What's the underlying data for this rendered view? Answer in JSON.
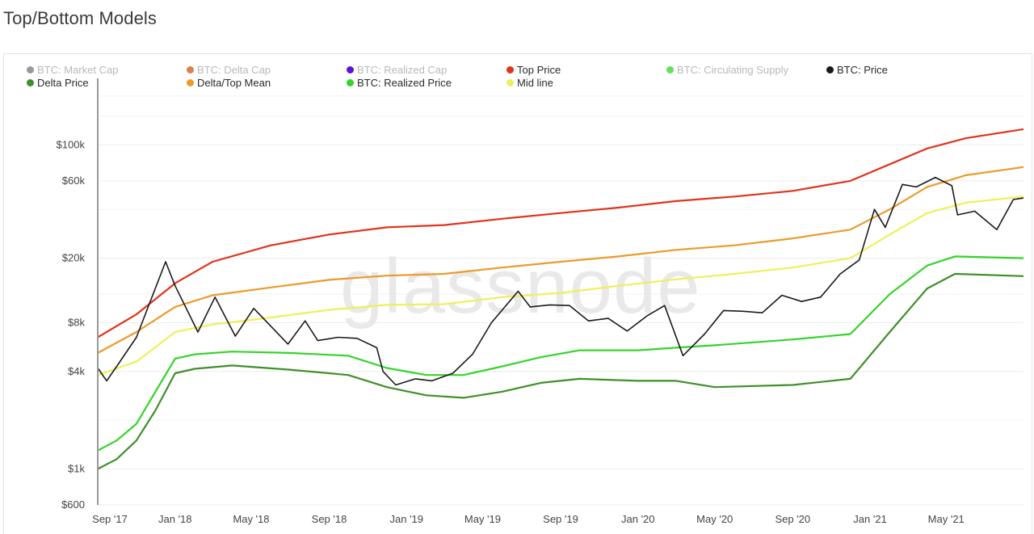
{
  "page": {
    "title": "Top/Bottom Models"
  },
  "watermark": "glassnode",
  "legend": [
    {
      "label": "BTC: Market Cap",
      "color": "#999999",
      "muted": true
    },
    {
      "label": "BTC: Delta Cap",
      "color": "#d9804f",
      "muted": true
    },
    {
      "label": "BTC: Realized Cap",
      "color": "#5b14d6",
      "muted": true
    },
    {
      "label": "Top Price",
      "color": "#e0331c",
      "muted": false
    },
    {
      "label": "BTC: Circulating Supply",
      "color": "#66e05a",
      "muted": true
    },
    {
      "label": "BTC: Price",
      "color": "#1a1a1a",
      "muted": false
    },
    {
      "label": "Delta Price",
      "color": "#3f8f2b",
      "muted": false
    },
    {
      "label": "Delta/Top Mean",
      "color": "#ec9a2a",
      "muted": false
    },
    {
      "label": "BTC: Realized Price",
      "color": "#34d42a",
      "muted": false
    },
    {
      "label": "Mid line",
      "color": "#eef05a",
      "muted": false
    }
  ],
  "chart_data": {
    "type": "line",
    "title": "Top/Bottom Models",
    "yscale": "log",
    "ylim": [
      600,
      200000
    ],
    "grid": true,
    "legend_position": "top",
    "y_ticks": [
      {
        "value": 600,
        "label": "$600"
      },
      {
        "value": 1000,
        "label": "$1k"
      },
      {
        "value": 4000,
        "label": "$4k"
      },
      {
        "value": 8000,
        "label": "$8k"
      },
      {
        "value": 20000,
        "label": "$20k"
      },
      {
        "value": 60000,
        "label": "$60k"
      },
      {
        "value": 100000,
        "label": "$100k"
      }
    ],
    "x_range": [
      "2017-09-01",
      "2021-08-31"
    ],
    "x_ticks": [
      {
        "date": "2017-09-01",
        "label": "Sep '17"
      },
      {
        "date": "2018-01-01",
        "label": "Jan '18"
      },
      {
        "date": "2018-05-01",
        "label": "May '18"
      },
      {
        "date": "2018-09-01",
        "label": "Sep '18"
      },
      {
        "date": "2019-01-01",
        "label": "Jan '19"
      },
      {
        "date": "2019-05-01",
        "label": "May '19"
      },
      {
        "date": "2019-09-01",
        "label": "Sep '19"
      },
      {
        "date": "2020-01-01",
        "label": "Jan '20"
      },
      {
        "date": "2020-05-01",
        "label": "May '20"
      },
      {
        "date": "2020-09-01",
        "label": "Sep '20"
      },
      {
        "date": "2021-01-01",
        "label": "Jan '21"
      },
      {
        "date": "2021-05-01",
        "label": "May '21"
      }
    ],
    "series": [
      {
        "name": "Top Price",
        "color": "#e0331c",
        "points": [
          [
            "2017-09-01",
            6500
          ],
          [
            "2017-11-01",
            9000
          ],
          [
            "2018-01-01",
            14000
          ],
          [
            "2018-03-01",
            19000
          ],
          [
            "2018-06-01",
            24000
          ],
          [
            "2018-09-01",
            28000
          ],
          [
            "2018-12-01",
            31000
          ],
          [
            "2019-03-01",
            32000
          ],
          [
            "2019-06-01",
            35000
          ],
          [
            "2019-09-01",
            38000
          ],
          [
            "2019-12-01",
            41000
          ],
          [
            "2020-03-01",
            45000
          ],
          [
            "2020-06-01",
            48000
          ],
          [
            "2020-09-01",
            52000
          ],
          [
            "2020-12-01",
            60000
          ],
          [
            "2021-02-01",
            76000
          ],
          [
            "2021-04-01",
            95000
          ],
          [
            "2021-06-01",
            110000
          ],
          [
            "2021-08-31",
            125000
          ]
        ]
      },
      {
        "name": "Delta/Top Mean",
        "color": "#ec9a2a",
        "points": [
          [
            "2017-09-01",
            5200
          ],
          [
            "2017-11-01",
            7000
          ],
          [
            "2018-01-01",
            10000
          ],
          [
            "2018-03-01",
            11800
          ],
          [
            "2018-06-01",
            13200
          ],
          [
            "2018-09-01",
            14700
          ],
          [
            "2018-12-01",
            15600
          ],
          [
            "2019-03-01",
            16000
          ],
          [
            "2019-06-01",
            17500
          ],
          [
            "2019-09-01",
            19000
          ],
          [
            "2019-12-01",
            20500
          ],
          [
            "2020-03-01",
            22500
          ],
          [
            "2020-06-01",
            24000
          ],
          [
            "2020-09-01",
            26500
          ],
          [
            "2020-12-01",
            30000
          ],
          [
            "2021-02-01",
            40000
          ],
          [
            "2021-04-01",
            55000
          ],
          [
            "2021-06-01",
            65000
          ],
          [
            "2021-08-31",
            73000
          ]
        ]
      },
      {
        "name": "Mid line",
        "color": "#eef05a",
        "points": [
          [
            "2017-09-01",
            3800
          ],
          [
            "2017-11-01",
            4600
          ],
          [
            "2018-01-01",
            7000
          ],
          [
            "2018-03-01",
            7800
          ],
          [
            "2018-06-01",
            8600
          ],
          [
            "2018-09-01",
            9600
          ],
          [
            "2018-12-01",
            10300
          ],
          [
            "2019-03-01",
            10400
          ],
          [
            "2019-06-01",
            11500
          ],
          [
            "2019-09-01",
            12200
          ],
          [
            "2019-12-01",
            13500
          ],
          [
            "2020-03-01",
            14800
          ],
          [
            "2020-06-01",
            16000
          ],
          [
            "2020-09-01",
            17500
          ],
          [
            "2020-12-01",
            20000
          ],
          [
            "2021-02-01",
            28000
          ],
          [
            "2021-04-01",
            38000
          ],
          [
            "2021-06-01",
            44000
          ],
          [
            "2021-08-31",
            48000
          ]
        ]
      },
      {
        "name": "BTC: Realized Price",
        "color": "#34d42a",
        "points": [
          [
            "2017-09-01",
            1300
          ],
          [
            "2017-10-01",
            1500
          ],
          [
            "2017-11-01",
            1900
          ],
          [
            "2017-12-01",
            3000
          ],
          [
            "2018-01-01",
            4800
          ],
          [
            "2018-02-01",
            5100
          ],
          [
            "2018-04-01",
            5300
          ],
          [
            "2018-07-01",
            5200
          ],
          [
            "2018-10-01",
            5000
          ],
          [
            "2018-12-01",
            4200
          ],
          [
            "2019-02-01",
            3800
          ],
          [
            "2019-04-01",
            3800
          ],
          [
            "2019-06-01",
            4300
          ],
          [
            "2019-08-01",
            4900
          ],
          [
            "2019-10-01",
            5400
          ],
          [
            "2020-01-01",
            5400
          ],
          [
            "2020-03-01",
            5600
          ],
          [
            "2020-05-01",
            5800
          ],
          [
            "2020-09-01",
            6300
          ],
          [
            "2020-12-01",
            6800
          ],
          [
            "2021-02-01",
            12000
          ],
          [
            "2021-04-01",
            18000
          ],
          [
            "2021-05-15",
            20500
          ],
          [
            "2021-08-31",
            20000
          ]
        ]
      },
      {
        "name": "Delta Price",
        "color": "#3f8f2b",
        "points": [
          [
            "2017-09-01",
            1000
          ],
          [
            "2017-10-01",
            1150
          ],
          [
            "2017-11-01",
            1500
          ],
          [
            "2017-12-01",
            2300
          ],
          [
            "2018-01-01",
            3900
          ],
          [
            "2018-02-01",
            4150
          ],
          [
            "2018-04-01",
            4350
          ],
          [
            "2018-07-01",
            4100
          ],
          [
            "2018-10-01",
            3800
          ],
          [
            "2018-12-01",
            3200
          ],
          [
            "2019-02-01",
            2850
          ],
          [
            "2019-04-01",
            2750
          ],
          [
            "2019-06-01",
            3000
          ],
          [
            "2019-08-01",
            3400
          ],
          [
            "2019-10-01",
            3600
          ],
          [
            "2020-01-01",
            3500
          ],
          [
            "2020-03-01",
            3500
          ],
          [
            "2020-05-01",
            3200
          ],
          [
            "2020-09-01",
            3300
          ],
          [
            "2020-12-01",
            3600
          ],
          [
            "2021-02-01",
            7000
          ],
          [
            "2021-04-01",
            13000
          ],
          [
            "2021-05-15",
            16000
          ],
          [
            "2021-08-31",
            15500
          ]
        ]
      },
      {
        "name": "BTC: Price",
        "color": "#1a1a1a",
        "points": [
          [
            "2017-09-01",
            4200
          ],
          [
            "2017-09-15",
            3500
          ],
          [
            "2017-10-01",
            4300
          ],
          [
            "2017-11-01",
            6500
          ],
          [
            "2017-12-17",
            19000
          ],
          [
            "2018-01-01",
            13500
          ],
          [
            "2018-02-06",
            7000
          ],
          [
            "2018-03-05",
            11500
          ],
          [
            "2018-04-06",
            6600
          ],
          [
            "2018-05-05",
            9800
          ],
          [
            "2018-06-28",
            5900
          ],
          [
            "2018-07-25",
            8200
          ],
          [
            "2018-08-14",
            6200
          ],
          [
            "2018-09-15",
            6500
          ],
          [
            "2018-10-15",
            6400
          ],
          [
            "2018-11-15",
            5600
          ],
          [
            "2018-11-25",
            4000
          ],
          [
            "2018-12-15",
            3300
          ],
          [
            "2019-01-15",
            3600
          ],
          [
            "2019-02-10",
            3500
          ],
          [
            "2019-03-15",
            3900
          ],
          [
            "2019-04-15",
            5100
          ],
          [
            "2019-05-15",
            8000
          ],
          [
            "2019-06-26",
            12500
          ],
          [
            "2019-07-15",
            10000
          ],
          [
            "2019-08-15",
            10300
          ],
          [
            "2019-09-15",
            10200
          ],
          [
            "2019-10-15",
            8200
          ],
          [
            "2019-11-15",
            8500
          ],
          [
            "2019-12-15",
            7100
          ],
          [
            "2020-01-15",
            8800
          ],
          [
            "2020-02-12",
            10200
          ],
          [
            "2020-03-12",
            5000
          ],
          [
            "2020-04-15",
            6800
          ],
          [
            "2020-05-15",
            9500
          ],
          [
            "2020-06-15",
            9400
          ],
          [
            "2020-07-15",
            9200
          ],
          [
            "2020-08-15",
            11800
          ],
          [
            "2020-09-15",
            10800
          ],
          [
            "2020-10-15",
            11500
          ],
          [
            "2020-11-15",
            16000
          ],
          [
            "2020-12-15",
            19500
          ],
          [
            "2021-01-08",
            40000
          ],
          [
            "2021-01-25",
            31000
          ],
          [
            "2021-02-21",
            57000
          ],
          [
            "2021-03-15",
            55000
          ],
          [
            "2021-04-14",
            63000
          ],
          [
            "2021-05-10",
            56000
          ],
          [
            "2021-05-19",
            37000
          ],
          [
            "2021-06-15",
            39000
          ],
          [
            "2021-07-20",
            30000
          ],
          [
            "2021-08-15",
            46000
          ],
          [
            "2021-08-31",
            47000
          ]
        ]
      }
    ]
  }
}
